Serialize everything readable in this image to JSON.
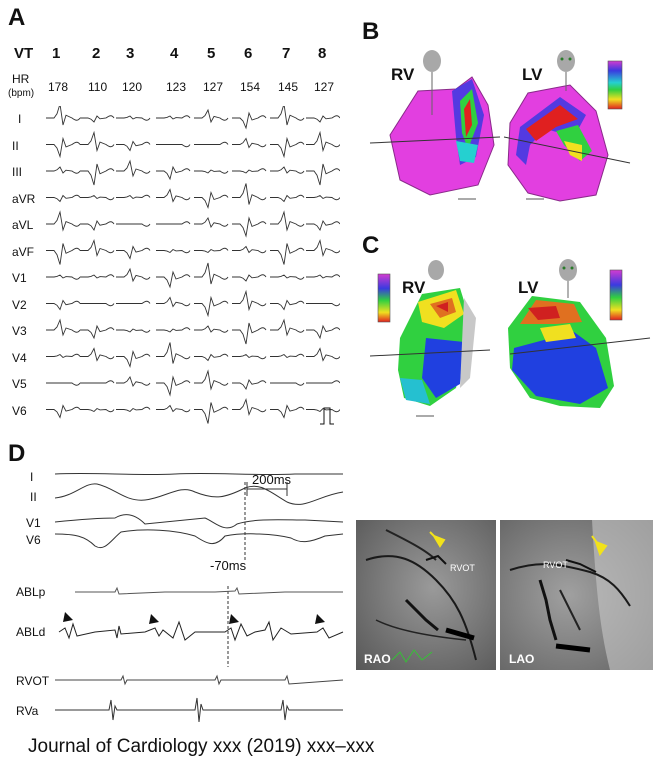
{
  "panel_a": {
    "letter": "A",
    "vt_label": "VT",
    "vt_numbers": [
      "1",
      "2",
      "3",
      "4",
      "5",
      "6",
      "7",
      "8"
    ],
    "hr_label": "HR",
    "hr_unit": "(bpm)",
    "hr_values": [
      "178",
      "110",
      "120",
      "123",
      "127",
      "154",
      "145",
      "127"
    ],
    "leads": [
      "I",
      "II",
      "III",
      "aVR",
      "aVL",
      "aVF",
      "V1",
      "V2",
      "V3",
      "V4",
      "V5",
      "V6"
    ]
  },
  "panel_b": {
    "letter": "B",
    "rv_label": "RV",
    "lv_label": "LV"
  },
  "panel_c": {
    "letter": "C",
    "rv_label": "RV",
    "lv_label": "LV"
  },
  "panel_d": {
    "letter": "D",
    "surface_leads": [
      "I",
      "II",
      "V1",
      "V6"
    ],
    "interval_label": "200ms",
    "timing_label": "-70ms",
    "ablp_label": "ABLp",
    "abld_label": "ABLd",
    "rvot_label": "RVOT",
    "rva_label": "RVa"
  },
  "fluoro": {
    "rao_label": "RAO",
    "lao_label": "LAO",
    "rvot_tag": "RVOT"
  },
  "footer": {
    "citation": "Journal of Cardiology xxx (2019) xxx–xxx"
  },
  "colors": {
    "magenta": "#e23fe0",
    "arrow_yellow": "#f2e21a"
  }
}
